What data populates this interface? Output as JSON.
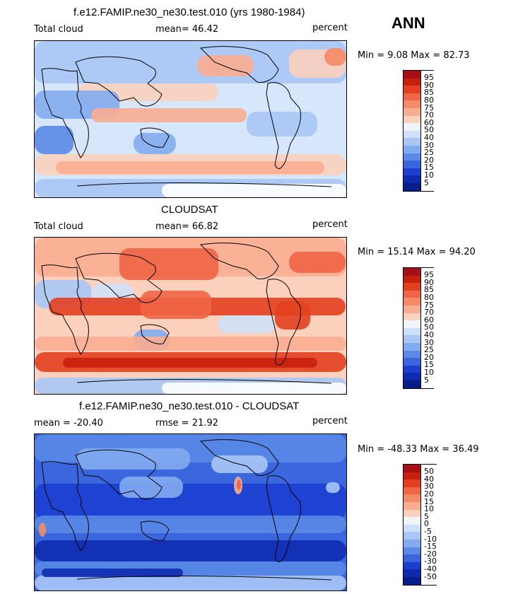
{
  "season": "ANN",
  "panels": [
    {
      "title": "f.e12.FAMIP.ne30_ne30.test.010 (yrs 1980-1984)",
      "left_label": "Total cloud",
      "center_label": "mean=  46.42",
      "right_label": "percent",
      "minmax": "Min =   9.08 Max =  82.73",
      "legend_labels": [
        "95",
        "90",
        "85",
        "80",
        "75",
        "70",
        "60",
        "50",
        "40",
        "30",
        "25",
        "20",
        "15",
        "10",
        "5"
      ],
      "legend_colors": [
        "#a50f15",
        "#c8200f",
        "#e2401f",
        "#ef6545",
        "#f58a66",
        "#f9ad90",
        "#fbd0bd",
        "#f1f4fb",
        "#cfe0fa",
        "#a9c7f6",
        "#83abf0",
        "#5a8ae6",
        "#3a67de",
        "#1c3fd0",
        "#0e2bb0",
        "#061d8a"
      ],
      "style": "model"
    },
    {
      "title": "CLOUDSAT",
      "left_label": "Total cloud",
      "center_label": "mean=  66.82",
      "right_label": "percent",
      "minmax": "Min =  15.14 Max =  94.20",
      "legend_labels": [
        "95",
        "90",
        "85",
        "80",
        "75",
        "70",
        "60",
        "50",
        "40",
        "30",
        "25",
        "20",
        "15",
        "10",
        "5"
      ],
      "legend_colors": [
        "#a50f15",
        "#c8200f",
        "#e2401f",
        "#ef6545",
        "#f58a66",
        "#f9ad90",
        "#fbd0bd",
        "#f1f4fb",
        "#cfe0fa",
        "#a9c7f6",
        "#83abf0",
        "#5a8ae6",
        "#3a67de",
        "#1c3fd0",
        "#0e2bb0",
        "#061d8a"
      ],
      "style": "obs"
    },
    {
      "title": "f.e12.FAMIP.ne30_ne30.test.010 - CLOUDSAT",
      "left_label": "mean = -20.40",
      "center_label": "rmse =  21.92",
      "right_label": "percent",
      "minmax": "Min = -48.33 Max =  36.49",
      "legend_labels": [
        "50",
        "40",
        "30",
        "20",
        "15",
        "10",
        "5",
        "0",
        "-5",
        "-10",
        "-15",
        "-20",
        "-30",
        "-40",
        "-50"
      ],
      "legend_colors": [
        "#a50f15",
        "#c8200f",
        "#e2401f",
        "#ef6545",
        "#f58a66",
        "#f9ad90",
        "#fbd0bd",
        "#f1f4fb",
        "#cfe0fa",
        "#a9c7f6",
        "#83abf0",
        "#5a8ae6",
        "#3a67de",
        "#1c3fd0",
        "#0e2bb0",
        "#061d8a"
      ],
      "style": "diff"
    }
  ],
  "chart_data": [
    {
      "type": "heatmap",
      "title": "f.e12.FAMIP.ne30_ne30.test.010 (yrs 1980-1984)",
      "variable": "Total cloud",
      "units": "percent",
      "mean": 46.42,
      "min": 9.08,
      "max": 82.73,
      "contour_levels": [
        5,
        10,
        15,
        20,
        25,
        30,
        40,
        50,
        60,
        70,
        75,
        80,
        85,
        90,
        95
      ]
    },
    {
      "type": "heatmap",
      "title": "CLOUDSAT",
      "variable": "Total cloud",
      "units": "percent",
      "mean": 66.82,
      "min": 15.14,
      "max": 94.2,
      "contour_levels": [
        5,
        10,
        15,
        20,
        25,
        30,
        40,
        50,
        60,
        70,
        75,
        80,
        85,
        90,
        95
      ]
    },
    {
      "type": "heatmap",
      "title": "f.e12.FAMIP.ne30_ne30.test.010 - CLOUDSAT",
      "units": "percent",
      "mean": -20.4,
      "rmse": 21.92,
      "min": -48.33,
      "max": 36.49,
      "contour_levels": [
        -50,
        -40,
        -30,
        -20,
        -15,
        -10,
        -5,
        0,
        5,
        10,
        15,
        20,
        30,
        40,
        50
      ]
    }
  ]
}
